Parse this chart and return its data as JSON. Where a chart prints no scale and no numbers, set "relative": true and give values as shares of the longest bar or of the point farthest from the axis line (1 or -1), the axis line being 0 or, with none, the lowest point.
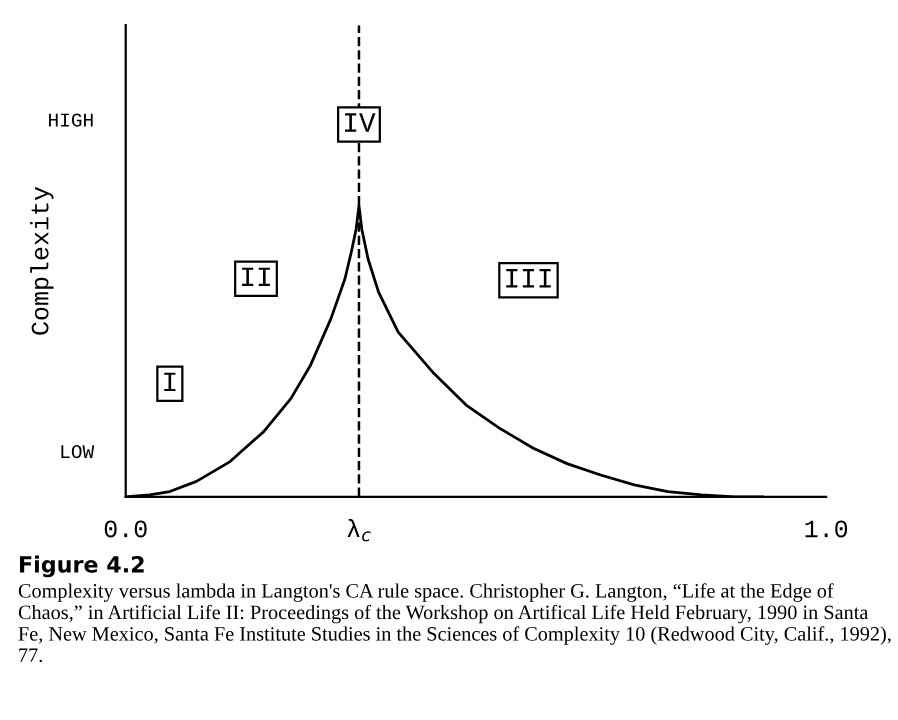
{
  "chart_data": {
    "type": "line",
    "title": "Figure 4.2",
    "ylabel": "Complexity",
    "relative": true,
    "x": [
      0.0,
      0.034,
      0.063,
      0.101,
      0.149,
      0.197,
      0.236,
      0.264,
      0.293,
      0.313,
      0.322,
      0.329,
      0.333,
      0.337,
      0.346,
      0.361,
      0.389,
      0.438,
      0.486,
      0.534,
      0.582,
      0.63,
      0.678,
      0.726,
      0.774,
      0.822,
      0.87,
      0.909
    ],
    "series": [
      {
        "color": "#000000",
        "values": [
          0,
          0.007,
          0.018,
          0.053,
          0.121,
          0.224,
          0.338,
          0.453,
          0.612,
          0.749,
          0.84,
          0.92,
          1.0,
          0.92,
          0.817,
          0.703,
          0.566,
          0.429,
          0.315,
          0.235,
          0.167,
          0.114,
          0.075,
          0.041,
          0.018,
          0.007,
          0,
          0
        ]
      }
    ],
    "xlim": [
      0,
      1.0
    ],
    "xticks": [
      {
        "value": 0,
        "label": "0.0"
      },
      {
        "value": 0.333,
        "label": "λ$_{c}$"
      },
      {
        "value": 1.0,
        "label": "1.0"
      }
    ],
    "ref_lines": [
      {
        "axis": "x",
        "value": 0.333,
        "color": "#000000",
        "line_style": "dashed"
      }
    ],
    "annotations": [
      "LOW",
      "HIGH",
      {
        "text": "I",
        "x": 0.063,
        "y": 0.388
      },
      {
        "text": "II",
        "x": 0.186,
        "y": 0.749
      },
      {
        "text": "III",
        "x": 0.575,
        "y": 0.744
      },
      {
        "text": "IV",
        "x": 0.333,
        "y": 1.279
      },
      "Complexity versus lambda in Langton's CA rule space. Christopher G. Langton, “Life at the Edge of Chaos,” in Artificial Life II: Proceedings of the Workshop on Artifical Life Held February, 1990 in Santa Fe, New Mexico, Santa Fe Institute Studies in the Sciences of Complexity 10 (Redwood City, Calif., 1992), 77."
    ],
    "grid": false,
    "legend": false,
    "marker": "none",
    "line_style": "solid"
  }
}
